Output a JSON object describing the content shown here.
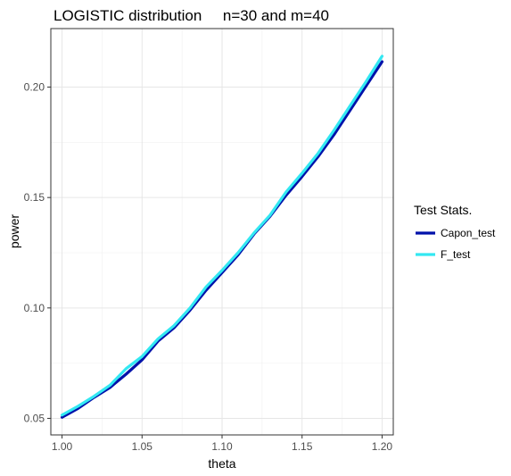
{
  "chart_data": {
    "type": "line",
    "title": "LOGISTIC distribution     n=30 and m=40",
    "xlabel": "theta",
    "ylabel": "power",
    "xlim": [
      0.993,
      1.207
    ],
    "ylim": [
      0.0425,
      0.2265
    ],
    "x_ticks": [
      1.0,
      1.05,
      1.1,
      1.15,
      1.2
    ],
    "x_tick_labels": [
      "1.00",
      "1.05",
      "1.10",
      "1.15",
      "1.20"
    ],
    "y_ticks": [
      0.05,
      0.1,
      0.15,
      0.2
    ],
    "y_tick_labels": [
      "0.05",
      "0.10",
      "0.15",
      "0.20"
    ],
    "grid": true,
    "legend": {
      "title": "Test Stats.",
      "position": "right"
    },
    "x": [
      1.0,
      1.01,
      1.02,
      1.03,
      1.04,
      1.05,
      1.06,
      1.07,
      1.08,
      1.09,
      1.1,
      1.11,
      1.12,
      1.13,
      1.14,
      1.15,
      1.16,
      1.17,
      1.18,
      1.19,
      1.2
    ],
    "series": [
      {
        "name": "Capon_test",
        "color": "#0011aa",
        "values": [
          0.0505,
          0.0545,
          0.0595,
          0.064,
          0.07,
          0.0765,
          0.085,
          0.091,
          0.099,
          0.108,
          0.116,
          0.124,
          0.1335,
          0.1415,
          0.151,
          0.1595,
          0.1685,
          0.1785,
          0.1895,
          0.2005,
          0.2115
        ]
      },
      {
        "name": "F_test",
        "color": "#33e8f2",
        "values": [
          0.0515,
          0.0555,
          0.06,
          0.065,
          0.0725,
          0.078,
          0.086,
          0.092,
          0.1,
          0.1095,
          0.117,
          0.125,
          0.134,
          0.142,
          0.1525,
          0.161,
          0.17,
          0.1805,
          0.1915,
          0.2025,
          0.214
        ]
      }
    ]
  }
}
